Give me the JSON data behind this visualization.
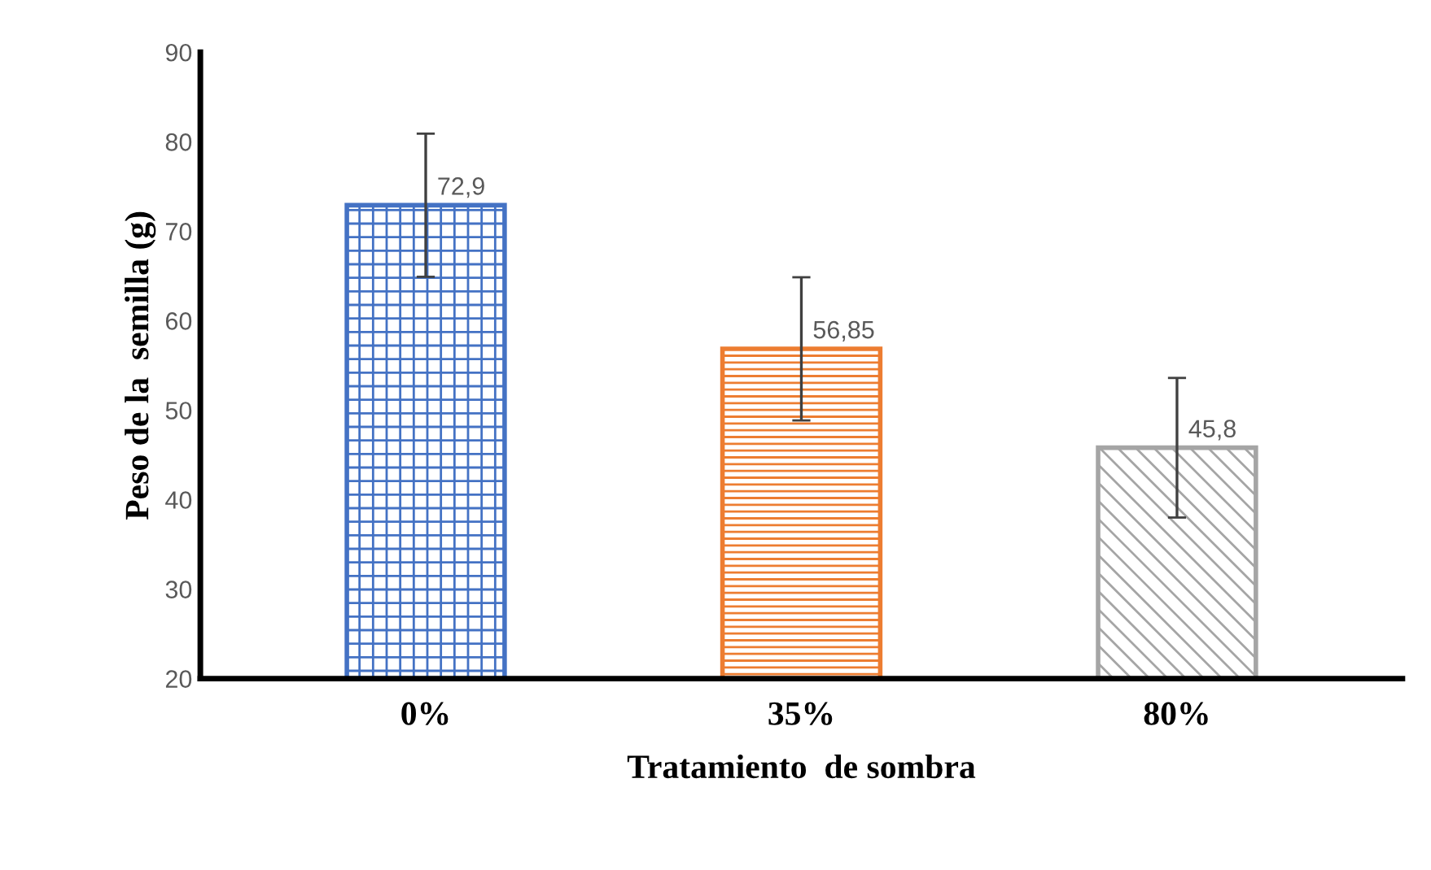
{
  "chart_data": {
    "type": "bar",
    "xlabel": "Tratamiento  de sombra",
    "ylabel": "Peso de la  semilla (g)",
    "categories": [
      "0%",
      "35%",
      "80%"
    ],
    "values": [
      72.9,
      56.85,
      45.8
    ],
    "value_labels": [
      "72,9",
      "56,85",
      "45,8"
    ],
    "errors": [
      8,
      8,
      7.8
    ],
    "colors": [
      "#4472c4",
      "#ed7d31",
      "#a5a5a5"
    ],
    "ylim": [
      20,
      90
    ],
    "yticks": [
      20,
      30,
      40,
      50,
      60,
      70,
      80,
      90
    ],
    "grid": false
  }
}
